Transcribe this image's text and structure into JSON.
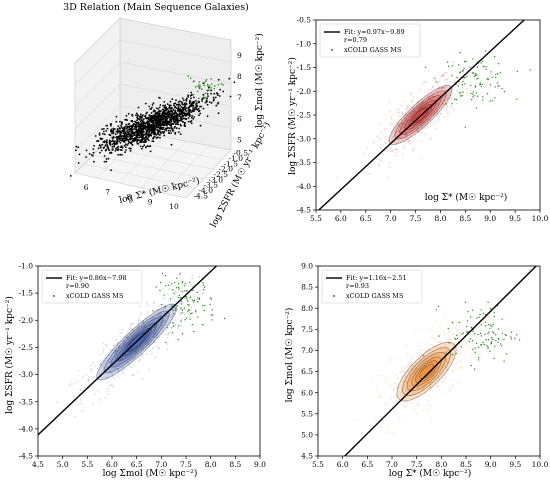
{
  "figure": {
    "panels": [
      {
        "id": "panel-3d",
        "title": "3D Relation (Main Sequence Galaxies)",
        "xlabel": "log Σ* (M☉ kpc⁻²)",
        "ylabel": "log ΣSFR (M☉ yr⁻¹ kpc⁻²)",
        "zlabel": "log Σmol (M☉ kpc⁻²)",
        "x_ticks": [
          "6",
          "7",
          "8",
          "9",
          "10"
        ],
        "y_ticks": [
          "-0.5",
          "-1.0",
          "-1.5",
          "-2.0",
          "-2.5",
          "-3.0",
          "-3.5",
          "-4.0",
          "-4.5"
        ],
        "z_ticks": [
          "5",
          "6",
          "7",
          "8",
          "9"
        ]
      }
    ],
    "colors": {
      "red_fill": "#c8201a",
      "blue_fill": "#1e3f9c",
      "orange_fill": "#ee7a12",
      "xcold_points": "#2c8a1f",
      "fit_line": "#000000"
    }
  },
  "chart_data": [
    {
      "type": "scatter",
      "panel": "3d",
      "title": "3D Relation (Main Sequence Galaxies)",
      "xlabel": "log Σ* (M☉ kpc⁻²)",
      "ylabel": "log ΣSFR (M☉ yr⁻¹ kpc⁻²)",
      "zlabel": "log Σmol (M☉ kpc⁻²)",
      "xlim": [
        5.5,
        10
      ],
      "ylim": [
        -4.5,
        -0.5
      ],
      "zlim": [
        4.5,
        9
      ],
      "series": [
        {
          "style": "black cloud",
          "x_range": [
            6.5,
            9.5
          ],
          "z_range": [
            5.0,
            8.5
          ]
        },
        {
          "style": "green points",
          "color": "#2c8a1f"
        }
      ]
    },
    {
      "type": "scatter",
      "panel": "top-right",
      "xlabel": "log Σ* (M☉ kpc⁻²)",
      "ylabel": "log ΣSFR (M☉ yr⁻¹ kpc⁻²)",
      "xlim": [
        5.5,
        10.0
      ],
      "ylim": [
        -4.5,
        -0.5
      ],
      "x_ticks": [
        5.5,
        6.0,
        6.5,
        7.0,
        7.5,
        8.0,
        8.5,
        9.0,
        9.5,
        10.0
      ],
      "y_ticks": [
        -4.5,
        -4.0,
        -3.5,
        -3.0,
        -2.5,
        -2.0,
        -1.5,
        -1.0,
        -0.5
      ],
      "fit": {
        "slope": 0.97,
        "intercept": -9.89,
        "label": "Fit: y=0.97x−9.89"
      },
      "r_label": "r=0.79",
      "legend_points_label": "xCOLD GASS MS",
      "legend_position": "top-left",
      "density_color": "#c8201a",
      "density_center": [
        7.6,
        -2.5
      ],
      "density_spread": [
        0.45,
        0.35
      ],
      "xcold_center": [
        8.7,
        -1.75
      ],
      "xcold_spread": [
        0.35,
        0.25
      ]
    },
    {
      "type": "scatter",
      "panel": "bottom-left",
      "xlabel": "log Σmol (M☉ kpc⁻²)",
      "ylabel": "log ΣSFR (M☉ yr⁻¹ kpc⁻²)",
      "xlim": [
        4.5,
        9.0
      ],
      "ylim": [
        -4.5,
        -1.0
      ],
      "x_ticks": [
        4.5,
        5.0,
        5.5,
        6.0,
        6.5,
        7.0,
        7.5,
        8.0,
        8.5,
        9.0
      ],
      "y_ticks": [
        -4.5,
        -4.0,
        -3.5,
        -3.0,
        -2.5,
        -2.0,
        -1.5,
        -1.0
      ],
      "fit": {
        "slope": 0.86,
        "intercept": -7.98,
        "label": "Fit: y=0.86x−7.98"
      },
      "r_label": "r=0.90",
      "legend_points_label": "xCOLD GASS MS",
      "legend_position": "top-left",
      "density_color": "#1e3f9c",
      "density_center": [
        6.5,
        -2.4
      ],
      "density_spread": [
        0.55,
        0.35
      ],
      "xcold_center": [
        7.5,
        -1.7
      ],
      "xcold_spread": [
        0.3,
        0.25
      ]
    },
    {
      "type": "scatter",
      "panel": "bottom-right",
      "xlabel": "log Σ* (M☉ kpc⁻²)",
      "ylabel": "log Σmol (M☉ kpc⁻²)",
      "xlim": [
        5.5,
        10.0
      ],
      "ylim": [
        4.5,
        9.0
      ],
      "x_ticks": [
        5.5,
        6.0,
        6.5,
        7.0,
        7.5,
        8.0,
        8.5,
        9.0,
        9.5,
        10.0
      ],
      "y_ticks": [
        4.5,
        5.0,
        5.5,
        6.0,
        6.5,
        7.0,
        7.5,
        8.0,
        8.5,
        9.0
      ],
      "fit": {
        "slope": 1.16,
        "intercept": -2.51,
        "label": "Fit: y=1.16x−2.51"
      },
      "r_label": "r=0.93",
      "legend_points_label": "xCOLD GASS MS",
      "legend_position": "top-left",
      "density_color": "#ee7a12",
      "density_center": [
        7.7,
        6.5
      ],
      "density_spread": [
        0.45,
        0.5
      ],
      "xcold_center": [
        8.8,
        7.4
      ],
      "xcold_spread": [
        0.35,
        0.35
      ]
    }
  ]
}
